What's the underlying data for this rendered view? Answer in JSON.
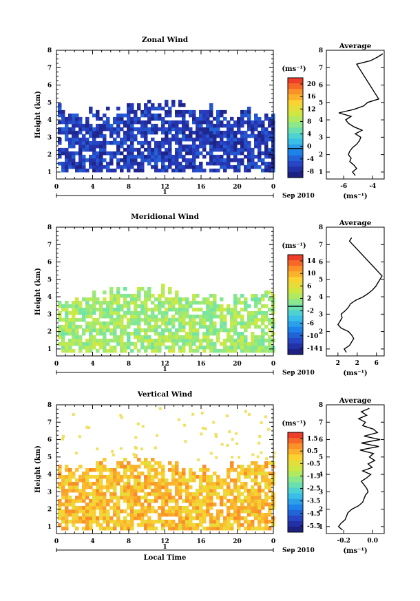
{
  "chart_data": [
    {
      "type": "heatmap",
      "title": "Zonal Wind",
      "xlabel": "",
      "ylabel": "Height (km)",
      "xticks": [
        "0",
        "4",
        "8",
        "12",
        "16",
        "20",
        "0"
      ],
      "yticks": [
        "1",
        "2",
        "3",
        "4",
        "5",
        "6",
        "7",
        "8"
      ],
      "xlim": [
        0,
        24
      ],
      "ylim": [
        0.6,
        8.0
      ],
      "colorbar": {
        "unit": "(ms⁻¹)",
        "ticks": [
          "20",
          "16",
          "12",
          "8",
          "4",
          "0",
          "-4",
          "-8"
        ],
        "range": [
          -9,
          22
        ],
        "zero_marker": 0
      },
      "date_axis": {
        "day": "1",
        "month": "Sep 2010"
      },
      "profile": {
        "title": "Average",
        "xlabel": "(ms⁻¹)",
        "xticks": [
          "-6",
          "-4"
        ],
        "xlim": [
          -7,
          -2.8
        ],
        "heights": [
          0.8,
          1.0,
          1.2,
          1.4,
          1.6,
          1.8,
          2.0,
          2.2,
          2.4,
          2.6,
          2.8,
          3.0,
          3.2,
          3.4,
          3.6,
          3.8,
          4.0,
          4.2,
          4.4,
          4.6,
          4.8,
          5.0,
          5.2,
          7.2,
          7.4,
          7.6,
          7.8
        ],
        "values": [
          -4.9,
          -5.1,
          -4.8,
          -5.0,
          -5.3,
          -5.2,
          -5.4,
          -5.3,
          -5.1,
          -4.8,
          -4.6,
          -4.5,
          -4.9,
          -4.4,
          -5.0,
          -5.4,
          -5.6,
          -5.2,
          -6.1,
          -5.0,
          -4.3,
          -4.0,
          -3.2,
          -4.8,
          -3.8,
          -3.3,
          -2.9
        ]
      },
      "data_region": {
        "h_min": 1.0,
        "h_max": 5.2,
        "dominant_range": [
          -8,
          -3
        ]
      }
    },
    {
      "type": "heatmap",
      "title": "Meridional Wind",
      "xlabel": "",
      "ylabel": "Height (km)",
      "xticks": [
        "0",
        "4",
        "8",
        "12",
        "16",
        "20",
        "0"
      ],
      "yticks": [
        "1",
        "2",
        "3",
        "4",
        "5",
        "6",
        "7",
        "8"
      ],
      "xlim": [
        0,
        24
      ],
      "ylim": [
        0.6,
        8.0
      ],
      "colorbar": {
        "unit": "(ms⁻¹)",
        "ticks": [
          "14",
          "10",
          "6",
          "2",
          "-2",
          "-6",
          "-10",
          "-14"
        ],
        "range": [
          -15,
          16
        ],
        "zero_marker": 0
      },
      "date_axis": {
        "day": "1",
        "month": "Sep 2010"
      },
      "profile": {
        "title": "Average",
        "xlabel": "(ms⁻¹)",
        "xticks": [
          "2",
          "2",
          "6"
        ],
        "xlim": [
          0.5,
          6
        ],
        "heights": [
          0.8,
          1.0,
          1.2,
          1.4,
          1.6,
          1.8,
          2.0,
          2.2,
          2.4,
          2.6,
          2.8,
          3.0,
          3.2,
          3.4,
          3.6,
          3.8,
          4.0,
          4.2,
          4.4,
          4.6,
          4.8,
          5.0,
          5.2,
          7.2,
          7.4
        ],
        "values": [
          2.4,
          2.2,
          2.7,
          2.9,
          3.1,
          2.9,
          2.6,
          1.9,
          1.6,
          1.8,
          2.0,
          1.9,
          2.3,
          2.6,
          2.8,
          3.3,
          4.0,
          4.5,
          4.9,
          5.2,
          5.4,
          5.6,
          5.8,
          2.7,
          2.9
        ]
      },
      "data_region": {
        "h_min": 0.8,
        "h_max": 4.6,
        "dominant_range": [
          0,
          5
        ]
      }
    },
    {
      "type": "heatmap",
      "title": "Vertical Wind",
      "xlabel": "Local Time",
      "ylabel": "Height (km)",
      "xticks": [
        "0",
        "4",
        "8",
        "12",
        "16",
        "20",
        "0"
      ],
      "yticks": [
        "1",
        "2",
        "3",
        "4",
        "5",
        "6",
        "7",
        "8"
      ],
      "xlim": [
        0,
        24
      ],
      "ylim": [
        0.6,
        8.0
      ],
      "colorbar": {
        "unit": "(ms⁻¹)",
        "ticks": [
          "1.5",
          "0.5",
          "-0.5",
          "-1.5",
          "-2.5",
          "-3.5",
          "-4.5",
          "-5.5"
        ],
        "range": [
          -6,
          2
        ]
      },
      "date_axis": {
        "day": "1",
        "month": "Sep 2010"
      },
      "profile": {
        "title": "Average",
        "xlabel": "(ms⁻¹)",
        "xticks": [
          "-0.2",
          "0.0"
        ],
        "xlim": [
          -0.3,
          0.13
        ],
        "heights": [
          0.8,
          1.0,
          1.2,
          1.4,
          1.6,
          1.8,
          2.0,
          2.2,
          2.4,
          2.6,
          2.8,
          3.0,
          3.2,
          3.4,
          3.6,
          3.8,
          4.0,
          4.2,
          4.4,
          4.6,
          4.8,
          5.0,
          5.2,
          5.4,
          5.6,
          5.8,
          6.0,
          6.2,
          6.4,
          6.6,
          6.8,
          7.0,
          7.2,
          7.4,
          7.6,
          7.8
        ],
        "values": [
          -0.18,
          -0.21,
          -0.19,
          -0.16,
          -0.15,
          -0.14,
          -0.11,
          -0.06,
          -0.03,
          -0.02,
          -0.01,
          0.01,
          0.0,
          -0.02,
          -0.04,
          0.0,
          0.03,
          -0.03,
          0.04,
          0.01,
          0.06,
          0.02,
          0.05,
          -0.05,
          0.09,
          -0.04,
          0.1,
          -0.02,
          0.08,
          0.05,
          -0.03,
          -0.01,
          -0.06,
          0.0,
          -0.04,
          0.02
        ]
      },
      "data_region": {
        "h_min": 0.8,
        "h_max": 5.0,
        "dominant_range": [
          -0.5,
          1.0
        ]
      }
    }
  ]
}
